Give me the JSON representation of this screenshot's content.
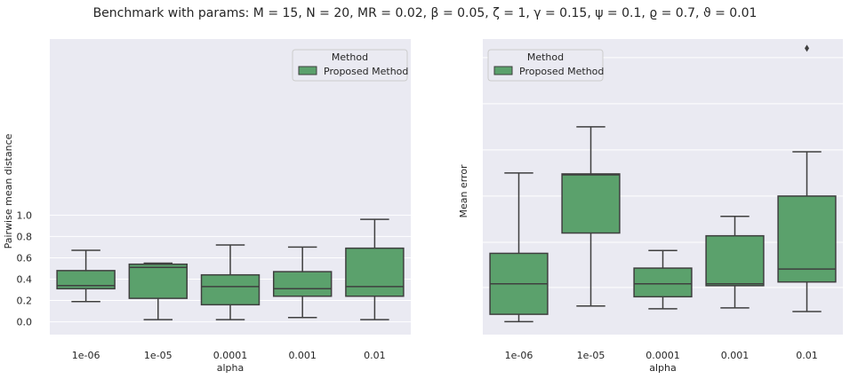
{
  "figure": {
    "suptitle": "Benchmark with params: M = 15,  N = 20,  MR = 0.02,  β = 0.05,  ζ = 1,  γ = 0.15,  ψ = 0.1,  ϱ = 0.7,  ϑ = 0.01"
  },
  "colors": {
    "box_fill": "#5ba16c",
    "box_edge": "#3f3f3f",
    "panel_bg": "#eaeaf2",
    "grid": "#ffffff"
  },
  "chart_data": [
    {
      "type": "box",
      "xlabel": "alpha",
      "ylabel": "Pairwise mean distance",
      "ylim": [
        -0.12,
        2.65
      ],
      "yticks": [
        "0.0",
        "0.2",
        "0.4",
        "0.6",
        "0.8",
        "1.0"
      ],
      "categories": [
        "1e-06",
        "1e-05",
        "0.0001",
        "0.001",
        "0.01"
      ],
      "legend": {
        "title": "Method",
        "label": "Proposed Method",
        "position": "upper right"
      },
      "series": [
        {
          "name": "Proposed Method",
          "boxes": [
            {
              "whisker_low": 0.19,
              "q1": 0.31,
              "median": 0.34,
              "q3": 0.48,
              "whisker_high": 0.67,
              "outliers": []
            },
            {
              "whisker_low": 0.02,
              "q1": 0.22,
              "median": 0.51,
              "q3": 0.54,
              "whisker_high": 0.55,
              "outliers": []
            },
            {
              "whisker_low": 0.02,
              "q1": 0.16,
              "median": 0.33,
              "q3": 0.44,
              "whisker_high": 0.72,
              "outliers": []
            },
            {
              "whisker_low": 0.04,
              "q1": 0.24,
              "median": 0.31,
              "q3": 0.47,
              "whisker_high": 0.7,
              "outliers": []
            },
            {
              "whisker_low": 0.02,
              "q1": 0.24,
              "median": 0.33,
              "q3": 0.69,
              "whisker_high": 0.96,
              "outliers": []
            }
          ]
        }
      ]
    },
    {
      "type": "box",
      "xlabel": "alpha",
      "ylabel": "Mean error",
      "ylim": [
        0,
        320
      ],
      "yticks": [],
      "categories": [
        "1e-06",
        "1e-05",
        "0.0001",
        "0.001",
        "0.01"
      ],
      "legend": {
        "title": "Method",
        "label": "Proposed Method",
        "position": "upper left"
      },
      "series": [
        {
          "name": "Proposed Method",
          "boxes": [
            {
              "whisker_low": 14,
              "q1": 22,
              "median": 55,
              "q3": 88,
              "whisker_high": 175,
              "outliers": []
            },
            {
              "whisker_low": 31,
              "q1": 110,
              "median": 173,
              "q3": 174,
              "whisker_high": 225,
              "outliers": []
            },
            {
              "whisker_low": 28,
              "q1": 41,
              "median": 55,
              "q3": 72,
              "whisker_high": 91,
              "outliers": []
            },
            {
              "whisker_low": 29,
              "q1": 53,
              "median": 55,
              "q3": 107,
              "whisker_high": 128,
              "outliers": []
            },
            {
              "whisker_low": 25,
              "q1": 57,
              "median": 71,
              "q3": 150,
              "whisker_high": 198,
              "outliers": [
                310
              ]
            }
          ]
        }
      ]
    }
  ]
}
